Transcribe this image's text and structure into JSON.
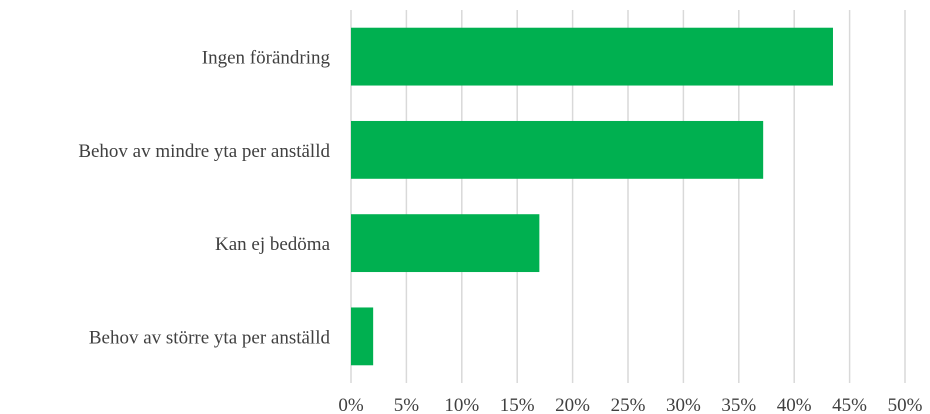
{
  "chart_data": {
    "type": "bar",
    "orientation": "horizontal",
    "categories": [
      "Ingen förändring",
      "Behov av mindre yta per anställd",
      "Kan ej bedöma",
      "Behov av större yta per anställd"
    ],
    "values": [
      43.5,
      37.2,
      17.0,
      2.0
    ],
    "unit": "%",
    "xlim": [
      0,
      50
    ],
    "x_ticks": [
      0,
      5,
      10,
      15,
      20,
      25,
      30,
      35,
      40,
      45,
      50
    ],
    "x_tick_labels": [
      "0%",
      "5%",
      "10%",
      "15%",
      "20%",
      "25%",
      "30%",
      "35%",
      "40%",
      "45%",
      "50%"
    ],
    "grid": "vertical",
    "legend": "none",
    "bar_color": "#00b050",
    "title": "",
    "xlabel": "",
    "ylabel": ""
  }
}
